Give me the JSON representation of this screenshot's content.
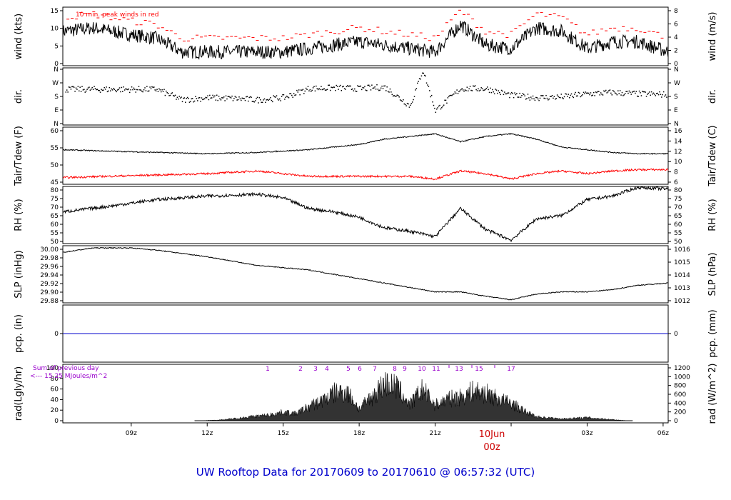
{
  "title": "UW Rooftop Data for 20170609  to  20170610 @ 06:57:32  (UTC)",
  "date_marker": {
    "date": "10Jun",
    "time": "00z"
  },
  "x_ticks": [
    "09z",
    "12z",
    "15z",
    "18z",
    "21z",
    "00z",
    "03z",
    "06z"
  ],
  "x_range_hours": [
    6.3,
    30.2
  ],
  "colors": {
    "main": "#000000",
    "dewpoint": "#ff0000",
    "precip": "#0000cc",
    "annotation": "#9900cc",
    "peak": "#ff0000",
    "date": "#cc0000",
    "title": "#0000cc"
  },
  "panels": {
    "wind": {
      "left_label": "wind (kts)",
      "right_label": "wind (m/s)",
      "left_ticks": [
        "0",
        "5",
        "10",
        "15"
      ],
      "right_ticks": [
        "0",
        "2",
        "4",
        "6",
        "8"
      ],
      "note": "10 min. peak winds in red"
    },
    "dir": {
      "left_label": "dir.",
      "right_label": "dir.",
      "left_ticks": [
        "N",
        "E",
        "S",
        "W",
        "N"
      ],
      "right_ticks": [
        "N",
        "E",
        "S",
        "W",
        "N"
      ]
    },
    "temp": {
      "left_label": "Tair/Tdew (F)",
      "right_label": "Tair/Tdew (C)",
      "left_ticks": [
        "45",
        "50",
        "55",
        "60"
      ],
      "right_ticks": [
        "6",
        "8",
        "10",
        "12",
        "14",
        "16"
      ]
    },
    "rh": {
      "left_label": "RH (%)",
      "right_label": "RH (%)",
      "left_ticks": [
        "50",
        "55",
        "60",
        "65",
        "70",
        "75",
        "80"
      ],
      "right_ticks": [
        "50",
        "55",
        "60",
        "65",
        "70",
        "75",
        "80"
      ]
    },
    "slp": {
      "left_label": "SLP (inHg)",
      "right_label": "SLP (hPa)",
      "left_ticks": [
        "29.88",
        "29.90",
        "29.92",
        "29.94",
        "29.96",
        "29.98",
        "30.00"
      ],
      "right_ticks": [
        "1012",
        "1013",
        "1014",
        "1015",
        "1016"
      ]
    },
    "pcp": {
      "left_label": "pcp. (in)",
      "right_label": "pcp. (mm)",
      "left_ticks": [
        "0"
      ],
      "right_ticks": [
        "0"
      ]
    },
    "rad": {
      "left_label": "rad(Lgly/hr)",
      "right_label": "rad (W/m^2)",
      "left_ticks": [
        "0",
        "20",
        "40",
        "60",
        "80",
        "100"
      ],
      "right_ticks": [
        "0",
        "200",
        "400",
        "600",
        "800",
        "1000",
        "1200"
      ],
      "annotation_line1": "Sum of previous day",
      "annotation_line2": "<--- 15.25 MJoules/m^2",
      "hour_labels": [
        "1",
        "2",
        "3",
        "4",
        "5",
        "6",
        "7",
        "8",
        "9",
        "10",
        "11",
        "13",
        "15",
        "17"
      ]
    }
  },
  "chart_data": [
    {
      "type": "line",
      "name_ref": "wind",
      "x_hours": [
        6.3,
        7.5,
        9,
        10,
        11,
        12,
        13,
        14,
        15,
        16,
        17,
        18,
        19,
        20,
        21,
        21.5,
        22,
        23,
        24,
        25,
        26,
        27,
        28,
        29,
        30.2
      ],
      "y_kts": [
        10,
        11,
        9,
        8,
        4,
        4,
        4,
        4,
        4,
        5,
        6,
        7,
        6,
        5,
        4,
        8,
        12,
        6,
        5,
        11,
        10,
        5,
        7,
        7,
        4
      ],
      "ylim_kts": [
        0,
        17
      ],
      "ylim_ms": [
        0,
        8.7
      ]
    },
    {
      "type": "scatter",
      "name_ref": "dir",
      "x_hours": [
        6.3,
        8,
        10,
        11,
        12,
        13,
        14,
        15,
        16,
        17,
        18,
        19,
        20,
        20.5,
        21,
        22,
        23,
        24,
        25,
        26,
        27,
        28,
        29,
        30.2
      ],
      "y_deg": [
        230,
        230,
        230,
        160,
        175,
        170,
        160,
        175,
        235,
        240,
        235,
        245,
        120,
        360,
        90,
        235,
        235,
        190,
        175,
        180,
        200,
        210,
        200,
        195
      ],
      "ylim_deg": [
        0,
        360
      ]
    },
    {
      "type": "line",
      "name_ref": "temp",
      "series": [
        {
          "name": "Tair",
          "x_hours": [
            6.3,
            8,
            10,
            12,
            14,
            16,
            18,
            19,
            20,
            21,
            22,
            23,
            24,
            25,
            26,
            27,
            28,
            29,
            30.2
          ],
          "y_f": [
            55,
            54.5,
            54,
            53.5,
            54,
            55,
            57,
            59,
            60,
            61,
            58,
            60,
            61,
            59,
            56,
            55,
            54,
            53.5,
            53.5
          ]
        },
        {
          "name": "Tdew",
          "x_hours": [
            6.3,
            8,
            10,
            12,
            14,
            16,
            18,
            20,
            21,
            22,
            23,
            24,
            25,
            26,
            27,
            28,
            29,
            30.2
          ],
          "y_f": [
            44.5,
            45,
            45.5,
            46,
            47,
            45,
            45,
            45,
            44,
            47,
            46,
            44,
            46,
            47,
            46,
            47,
            47.5,
            47.5
          ]
        }
      ],
      "ylim_f": [
        42,
        63.5
      ],
      "ylim_c": [
        5.6,
        17.5
      ]
    },
    {
      "type": "line",
      "name_ref": "rh",
      "x_hours": [
        6.3,
        8,
        10,
        12,
        14,
        15,
        16,
        17,
        18,
        19,
        20,
        21,
        22,
        23,
        24,
        25,
        26,
        27,
        28,
        29,
        30.2
      ],
      "y_pct": [
        66,
        69,
        73,
        75,
        76,
        74,
        68,
        66,
        63,
        57,
        55,
        52,
        68,
        56,
        50,
        62,
        64,
        73,
        75,
        80,
        79
      ],
      "ylim_pct": [
        48,
        80.5
      ]
    },
    {
      "type": "line",
      "name_ref": "slp",
      "x_hours": [
        6.3,
        7.5,
        9,
        10,
        12,
        14,
        16,
        18,
        20,
        21,
        22,
        23,
        24,
        25,
        26,
        27,
        28,
        29,
        30.2
      ],
      "y_inhg": [
        29.99,
        30.0,
        30.0,
        29.995,
        29.98,
        29.96,
        29.95,
        29.93,
        29.91,
        29.9,
        29.9,
        29.89,
        29.882,
        29.895,
        29.9,
        29.9,
        29.905,
        29.915,
        29.92
      ],
      "ylim_inhg": [
        29.875,
        30.005
      ],
      "ylim_hpa": [
        1011.7,
        1016.2
      ]
    },
    {
      "type": "line",
      "name_ref": "pcp",
      "x_hours": [
        6.3,
        30.2
      ],
      "y_in": [
        0,
        0
      ],
      "ylim_in": [
        -0.1,
        0.1
      ]
    },
    {
      "type": "area",
      "name_ref": "rad",
      "x_hours": [
        11.7,
        12.5,
        13,
        13.7,
        14.5,
        15,
        15.5,
        16,
        16.5,
        17,
        17.5,
        18,
        18.5,
        19,
        19.5,
        20,
        20.5,
        21,
        21.5,
        22,
        22.5,
        23,
        23.5,
        24,
        24.5,
        25,
        26,
        27,
        28,
        28.6
      ],
      "y_lgly": [
        0,
        2,
        5,
        10,
        15,
        22,
        18,
        35,
        50,
        70,
        75,
        30,
        60,
        95,
        85,
        40,
        80,
        40,
        55,
        60,
        75,
        70,
        55,
        45,
        25,
        10,
        5,
        8,
        3,
        0
      ],
      "ylim_lgly": [
        0,
        100
      ],
      "ylim_wm2": [
        0,
        1220
      ]
    }
  ]
}
